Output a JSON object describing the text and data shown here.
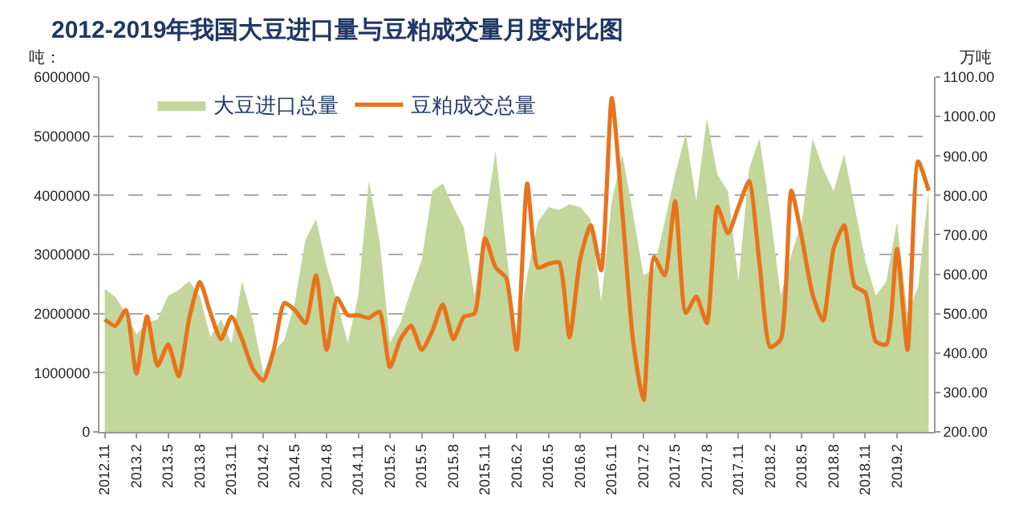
{
  "chart_data": {
    "type": "area",
    "title": "2012-2019年我国大豆进口量与豆粕成交量月度对比图",
    "ylabel": "吨：",
    "y2label": "万吨",
    "categories": [
      "2012.11",
      null,
      null,
      "2013.2",
      null,
      null,
      "2013.5",
      null,
      null,
      "2013.8",
      null,
      null,
      "2013.11",
      null,
      null,
      "2014.2",
      null,
      null,
      "2014.5",
      null,
      null,
      "2014.8",
      null,
      null,
      "2014.11",
      null,
      null,
      "2015.2",
      null,
      null,
      "2015.5",
      null,
      null,
      "2015.8",
      null,
      null,
      "2015.11",
      null,
      null,
      "2016.2",
      null,
      null,
      "2016.5",
      null,
      null,
      "2016.8",
      null,
      null,
      "2016.11",
      null,
      null,
      "2017.2",
      null,
      null,
      "2017.5",
      null,
      null,
      "2017.8",
      null,
      null,
      "2017.11",
      null,
      null,
      "2018.2",
      null,
      null,
      "2018.5",
      null,
      null,
      "2018.8",
      null,
      null,
      "2018.11",
      null,
      null,
      "2019.2",
      null,
      null,
      null
    ],
    "series": [
      {
        "name": "大豆进口总量",
        "color": "#c3d69b",
        "values": [
          2420000,
          2280000,
          2000000,
          1650000,
          1850000,
          1900000,
          2300000,
          2400000,
          2550000,
          2300000,
          1600000,
          1900000,
          1500000,
          2550000,
          1900000,
          1000000,
          1350000,
          1550000,
          2200000,
          3250000,
          3600000,
          2800000,
          2200000,
          1500000,
          2300000,
          4250000,
          3250000,
          1500000,
          1850000,
          2400000,
          2900000,
          4070000,
          4200000,
          3800000,
          3450000,
          2300000,
          3550000,
          4750000,
          3100000,
          1500000,
          2650000,
          3550000,
          3800000,
          3750000,
          3850000,
          3800000,
          3600000,
          2200000,
          3900000,
          4700000,
          3700000,
          2650000,
          2750000,
          3550000,
          4350000,
          5050000,
          3900000,
          5300000,
          4350000,
          4070000,
          2550000,
          4450000,
          4970000,
          3700000,
          2300000,
          3000000,
          3550000,
          4970000,
          4450000,
          4070000,
          4700000,
          3800000,
          2900000,
          2300000,
          2550000,
          3550000,
          2000000,
          2450000,
          4100000
        ]
      },
      {
        "name": "豆粕成交总量",
        "type": "line",
        "axis": "y2",
        "color": "#e8731c",
        "values": [
          485,
          469,
          509,
          348,
          493,
          368,
          422,
          341,
          489,
          580,
          502,
          435,
          492,
          435,
          361,
          330,
          408,
          527,
          509,
          476,
          597,
          408,
          539,
          496,
          496,
          489,
          505,
          364,
          435,
          469,
          408,
          455,
          523,
          435,
          492,
          500,
          691,
          617,
          590,
          408,
          830,
          617,
          626,
          630,
          440,
          637,
          724,
          610,
          1047,
          758,
          435,
          281,
          643,
          597,
          785,
          502,
          543,
          476,
          771,
          704,
          771,
          836,
          623,
          415,
          435,
          812,
          691,
          550,
          482,
          664,
          724,
          570,
          553,
          429,
          422,
          664,
          408,
          886,
          812
        ]
      }
    ],
    "ylim": [
      0,
      6000000
    ],
    "yticks": [
      0,
      1000000,
      2000000,
      3000000,
      4000000,
      5000000,
      6000000
    ],
    "y2lim": [
      200,
      1100
    ],
    "y2ticks": [
      {
        "value": 200,
        "label": "200.00"
      },
      {
        "value": 300,
        "label": "300.00"
      },
      {
        "value": 400,
        "label": "400.00"
      },
      {
        "value": 500,
        "label": "500.00"
      },
      {
        "value": 600,
        "label": "600.00"
      },
      {
        "value": 700,
        "label": "700.00"
      },
      {
        "value": 800,
        "label": "800.00"
      },
      {
        "value": 900,
        "label": "900.00"
      },
      {
        "value": 1000,
        "label": "1000.00"
      },
      {
        "value": 1100,
        "label": "1100.00"
      }
    ],
    "grid": "y",
    "legend": "top left"
  }
}
